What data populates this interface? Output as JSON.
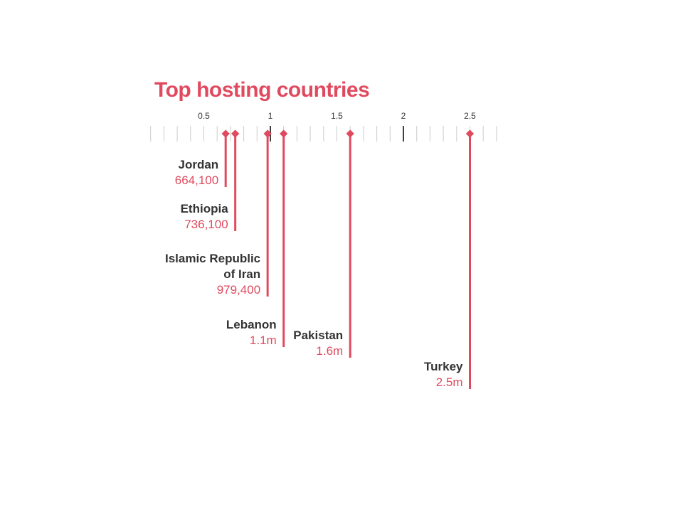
{
  "chart_data": {
    "type": "lollipop",
    "title": "Top hosting countries",
    "xlim": [
      0,
      2.7
    ],
    "x_ticks": [
      "0.5",
      "1",
      "1.5",
      "2",
      "2.5"
    ],
    "x_tick_values": [
      0.5,
      1,
      1.5,
      2,
      2.5
    ],
    "minor_tick_step": 0.1,
    "color": "#e04a5f",
    "grid": false,
    "points": [
      {
        "country": "Jordan",
        "value": 0.6641,
        "label": "664,100"
      },
      {
        "country": "Ethiopia",
        "value": 0.7361,
        "label": "736,100"
      },
      {
        "country": "Islamic Republic of Iran",
        "value": 0.9794,
        "label": "979,400"
      },
      {
        "country": "Lebanon",
        "value": 1.1,
        "label": "1.1m"
      },
      {
        "country": "Pakistan",
        "value": 1.6,
        "label": "1.6m"
      },
      {
        "country": "Turkey",
        "value": 2.5,
        "label": "2.5m"
      }
    ]
  }
}
